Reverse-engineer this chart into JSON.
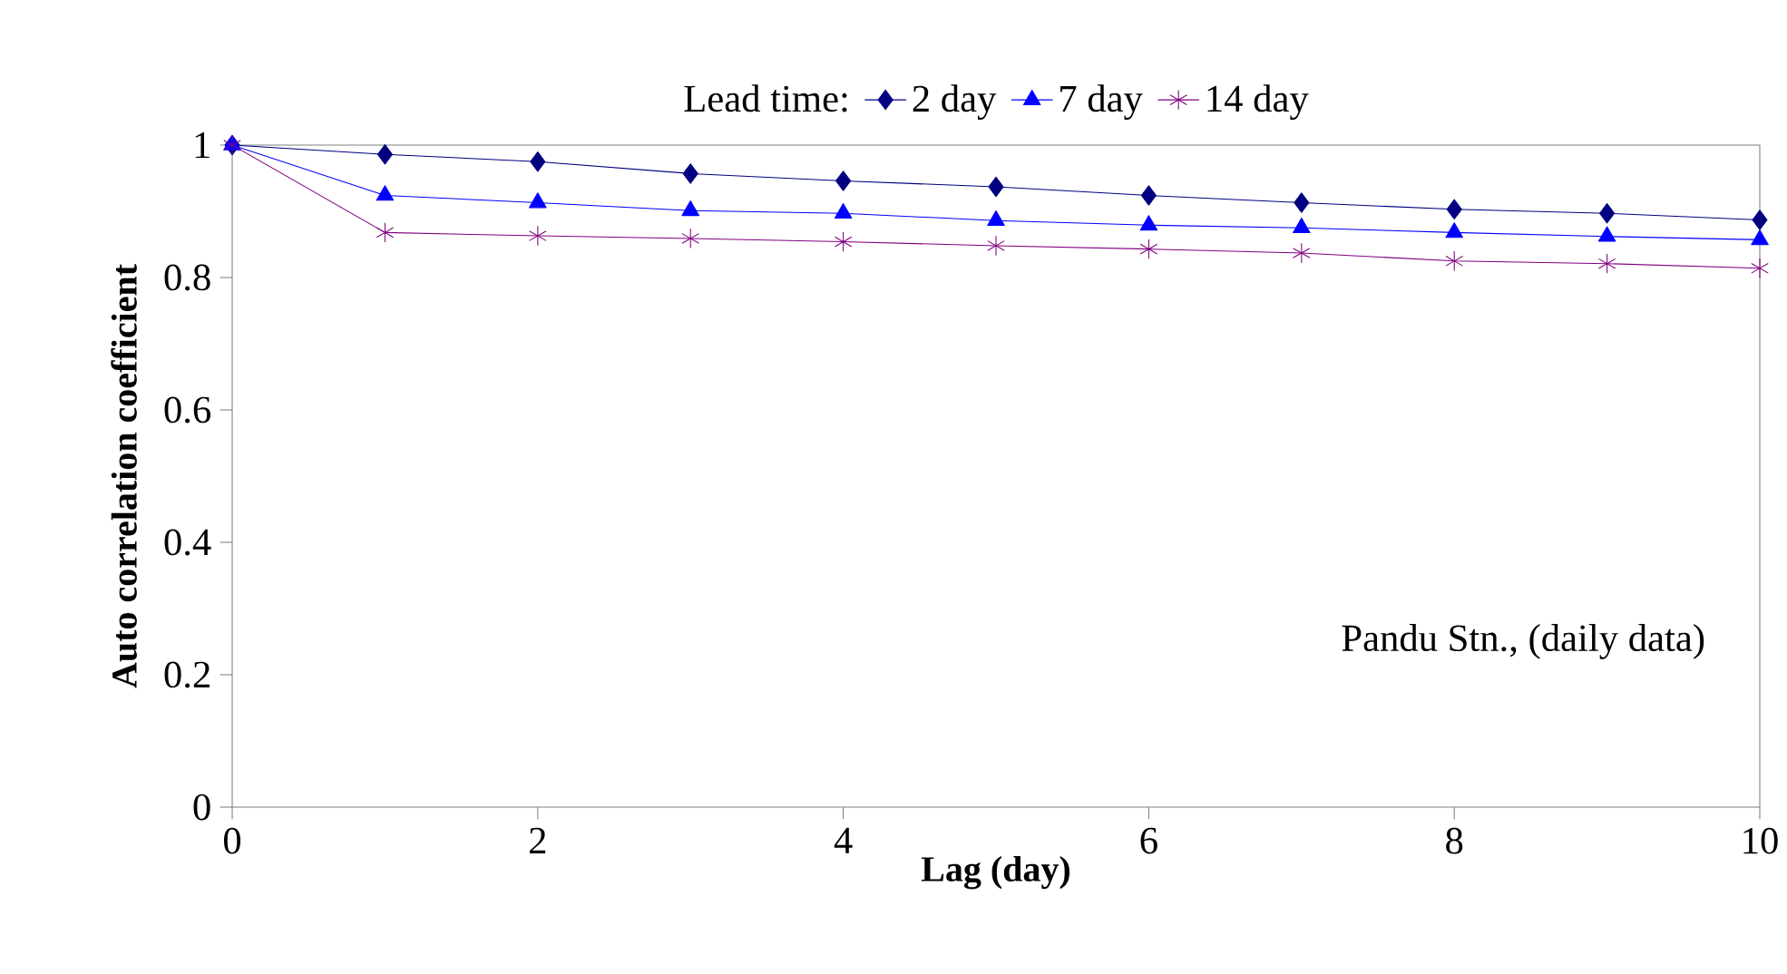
{
  "chart_data": {
    "type": "line",
    "xlabel": "Lag (day)",
    "ylabel": "Auto correlation coefficient",
    "legend_title": "Lead time:",
    "x": [
      0,
      1,
      2,
      3,
      4,
      5,
      6,
      7,
      8,
      9,
      10
    ],
    "series": [
      {
        "name": "2 day",
        "color": "#000080",
        "marker": "diamond",
        "values": [
          1,
          0.986,
          0.975,
          0.957,
          0.946,
          0.937,
          0.924,
          0.913,
          0.903,
          0.897,
          0.887
        ]
      },
      {
        "name": "7 day",
        "color": "#0000ff",
        "marker": "triangle",
        "values": [
          1,
          0.924,
          0.913,
          0.901,
          0.897,
          0.886,
          0.879,
          0.875,
          0.868,
          0.862,
          0.857
        ]
      },
      {
        "name": "14 day",
        "color": "#800080",
        "marker": "cross",
        "values": [
          1,
          0.868,
          0.863,
          0.859,
          0.854,
          0.848,
          0.843,
          0.837,
          0.825,
          0.821,
          0.814
        ]
      }
    ],
    "xlim": [
      0,
      10
    ],
    "ylim": [
      0,
      1
    ],
    "xticks": [
      0,
      2,
      4,
      6,
      8,
      10
    ],
    "yticks": [
      0,
      0.2,
      0.4,
      0.6,
      0.8,
      1
    ],
    "annotations": [
      "Pandu Stn., (daily data)"
    ],
    "legend": "top",
    "grid": false,
    "line_style": "solid"
  }
}
